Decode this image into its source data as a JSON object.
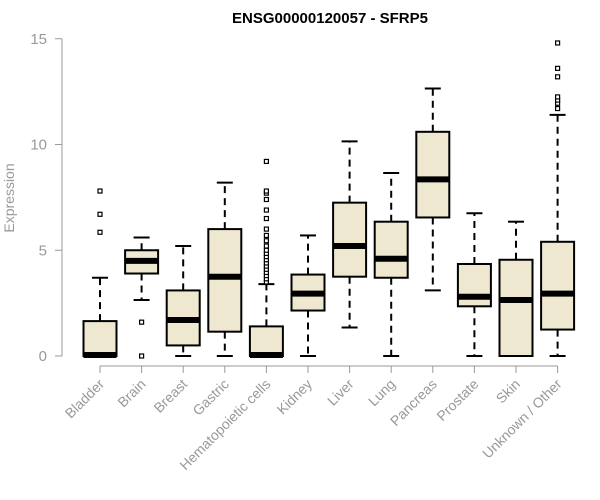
{
  "chart_data": {
    "type": "boxplot",
    "title": "ENSG00000120057 - SFRP5",
    "xlabel": "",
    "ylabel": "Expression",
    "ylim": [
      0,
      15
    ],
    "yticks": [
      0,
      5,
      10,
      15
    ],
    "grid": false,
    "box_fill": "#efe8d0",
    "outlier_style": "open-square",
    "categories": [
      "Bladder",
      "Brain",
      "Breast",
      "Gastric",
      "Hematopoietic cells",
      "Kidney",
      "Liver",
      "Lung",
      "Pancreas",
      "Prostate",
      "Skin",
      "Unknown / Other"
    ],
    "boxes": [
      {
        "whisker_low": 0,
        "q1": 0,
        "median": 0.05,
        "q3": 1.65,
        "whisker_high": 3.7,
        "outliers": [
          5.85,
          6.7,
          7.8
        ]
      },
      {
        "whisker_low": 2.65,
        "q1": 3.9,
        "median": 4.5,
        "q3": 5.0,
        "whisker_high": 5.6,
        "outliers": [
          0.0,
          1.6
        ]
      },
      {
        "whisker_low": 0,
        "q1": 0.5,
        "median": 1.7,
        "q3": 3.1,
        "whisker_high": 5.2,
        "outliers": []
      },
      {
        "whisker_low": 0,
        "q1": 1.15,
        "median": 3.75,
        "q3": 6.0,
        "whisker_high": 8.2,
        "outliers": []
      },
      {
        "whisker_low": 0,
        "q1": 0,
        "median": 0.05,
        "q3": 1.4,
        "whisker_high": 3.4,
        "outliers": [
          3.5,
          3.65,
          3.8,
          3.95,
          4.1,
          4.25,
          4.4,
          4.55,
          4.7,
          4.85,
          5.0,
          5.2,
          5.45,
          5.7,
          6.0,
          6.5,
          6.9,
          7.4,
          7.7,
          7.8,
          9.2
        ]
      },
      {
        "whisker_low": 0,
        "q1": 2.15,
        "median": 2.95,
        "q3": 3.85,
        "whisker_high": 5.7,
        "outliers": []
      },
      {
        "whisker_low": 1.35,
        "q1": 3.75,
        "median": 5.2,
        "q3": 7.25,
        "whisker_high": 10.15,
        "outliers": []
      },
      {
        "whisker_low": 0,
        "q1": 3.7,
        "median": 4.6,
        "q3": 6.35,
        "whisker_high": 8.65,
        "outliers": []
      },
      {
        "whisker_low": 3.1,
        "q1": 6.55,
        "median": 8.35,
        "q3": 10.6,
        "whisker_high": 12.65,
        "outliers": []
      },
      {
        "whisker_low": 0,
        "q1": 2.35,
        "median": 2.8,
        "q3": 4.35,
        "whisker_high": 6.75,
        "outliers": []
      },
      {
        "whisker_low": 0,
        "q1": 0,
        "median": 2.65,
        "q3": 4.55,
        "whisker_high": 6.35,
        "outliers": []
      },
      {
        "whisker_low": 0,
        "q1": 1.25,
        "median": 2.95,
        "q3": 5.4,
        "whisker_high": 11.4,
        "outliers": [
          11.7,
          11.95,
          12.1,
          12.25,
          13.2,
          13.6,
          14.8
        ]
      }
    ]
  }
}
